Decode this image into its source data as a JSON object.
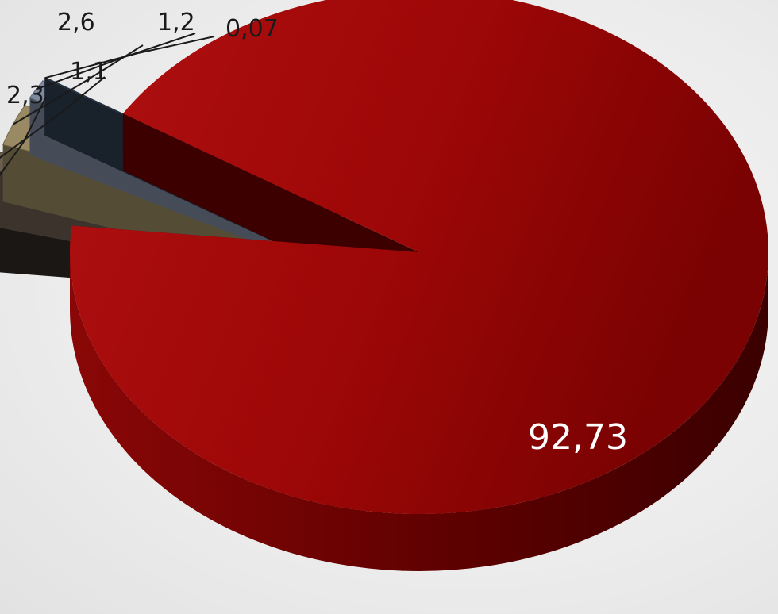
{
  "chart_data": {
    "type": "pie",
    "style": "3d-exploded",
    "values": [
      92.73,
      2.3,
      1.1,
      2.6,
      1.2,
      0.07
    ],
    "labels": [
      "92,73",
      "2,3",
      "1,1",
      "2,6",
      "1,2",
      "0,07"
    ],
    "colors": [
      "#9e0606",
      "#2f2a27",
      "#6b5d50",
      "#9a8a63",
      "#7e8aa0",
      "#2e3c4e"
    ],
    "legend": "none",
    "title": ""
  }
}
